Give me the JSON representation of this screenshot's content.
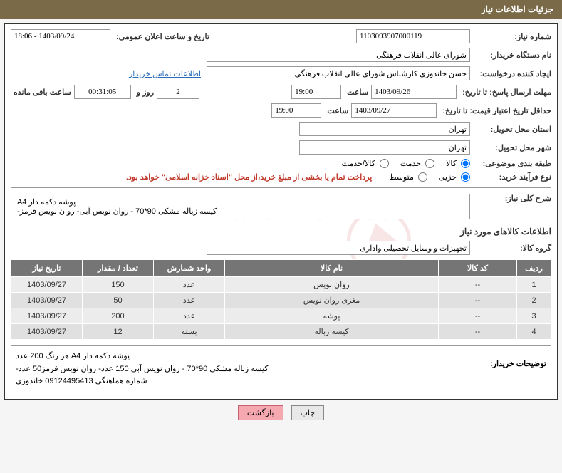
{
  "header": {
    "title": "جزئیات اطلاعات نیاز"
  },
  "form": {
    "need_number_label": "شماره نیاز:",
    "need_number": "1103093907000119",
    "public_date_label": "تاریخ و ساعت اعلان عمومی:",
    "public_date": "1403/09/24 - 18:06",
    "buyer_org_label": "نام دستگاه خریدار:",
    "buyer_org": "شورای عالی انقلاب فرهنگی",
    "requester_label": "ایجاد کننده درخواست:",
    "requester": "حسن خاندوزی کارشناس شورای عالی انقلاب فرهنگی",
    "contact_link": "اطلاعات تماس خریدار",
    "deadline_label": "مهلت ارسال پاسخ: تا تاریخ:",
    "deadline_date": "1403/09/26",
    "time_label": "ساعت",
    "deadline_time": "19:00",
    "days": "2",
    "days_and": "روز و",
    "remaining_time": "00:31:05",
    "remaining_label": "ساعت باقی مانده",
    "validity_label": "حداقل تاریخ اعتبار قیمت: تا تاریخ:",
    "validity_date": "1403/09/27",
    "validity_time": "19:00",
    "province_label": "استان محل تحویل:",
    "province": "تهران",
    "city_label": "شهر محل تحویل:",
    "city": "تهران",
    "category_label": "طبقه بندی موضوعی:",
    "cat_goods": "کالا",
    "cat_service": "خدمت",
    "cat_goodservice": "کالا/خدمت",
    "purchase_type_label": "نوع فرآیند خرید:",
    "type_partial": "جزیی",
    "type_medium": "متوسط",
    "payment_note": "پرداخت تمام یا بخشی از مبلغ خرید،از محل \"اسناد خزانه اسلامی\" خواهد بود.",
    "summary_label": "شرح کلی نیاز:",
    "summary_line1": "پوشه دکمه دار A4",
    "summary_line2": "کیسه زباله مشکی 90*70 - روان نویس آبی- روان نویس قرمز-",
    "goods_info_title": "اطلاعات کالاهای مورد نیاز",
    "goods_group_label": "گروه کالا:",
    "goods_group": "تجهیزات و وسایل تحصیلی واداری"
  },
  "table": {
    "headers": {
      "row": "ردیف",
      "code": "کد کالا",
      "name": "نام کالا",
      "unit": "واحد شمارش",
      "qty": "تعداد / مقدار",
      "date": "تاریخ نیاز"
    },
    "rows": [
      {
        "n": "1",
        "code": "--",
        "name": "روان نویس",
        "unit": "عدد",
        "qty": "150",
        "date": "1403/09/27"
      },
      {
        "n": "2",
        "code": "--",
        "name": "مغزی روان نویس",
        "unit": "عدد",
        "qty": "50",
        "date": "1403/09/27"
      },
      {
        "n": "3",
        "code": "--",
        "name": "پوشه",
        "unit": "عدد",
        "qty": "200",
        "date": "1403/09/27"
      },
      {
        "n": "4",
        "code": "--",
        "name": "کیسه زباله",
        "unit": "بسته",
        "qty": "12",
        "date": "1403/09/27"
      }
    ]
  },
  "comments": {
    "label": "توضیحات خریدار:",
    "line1": "پوشه دکمه دار A4 هر رنگ 200 عدد",
    "line2": "کیسه زباله مشکی 90*70 - روان نویس آبی 150 عدد- روان نویس قرمز50 عدد-",
    "line3": "شماره هماهنگی 09124495413 خاندوزی"
  },
  "buttons": {
    "print": "چاپ",
    "back": "بازگشت"
  },
  "watermark": "AriaTender.net"
}
